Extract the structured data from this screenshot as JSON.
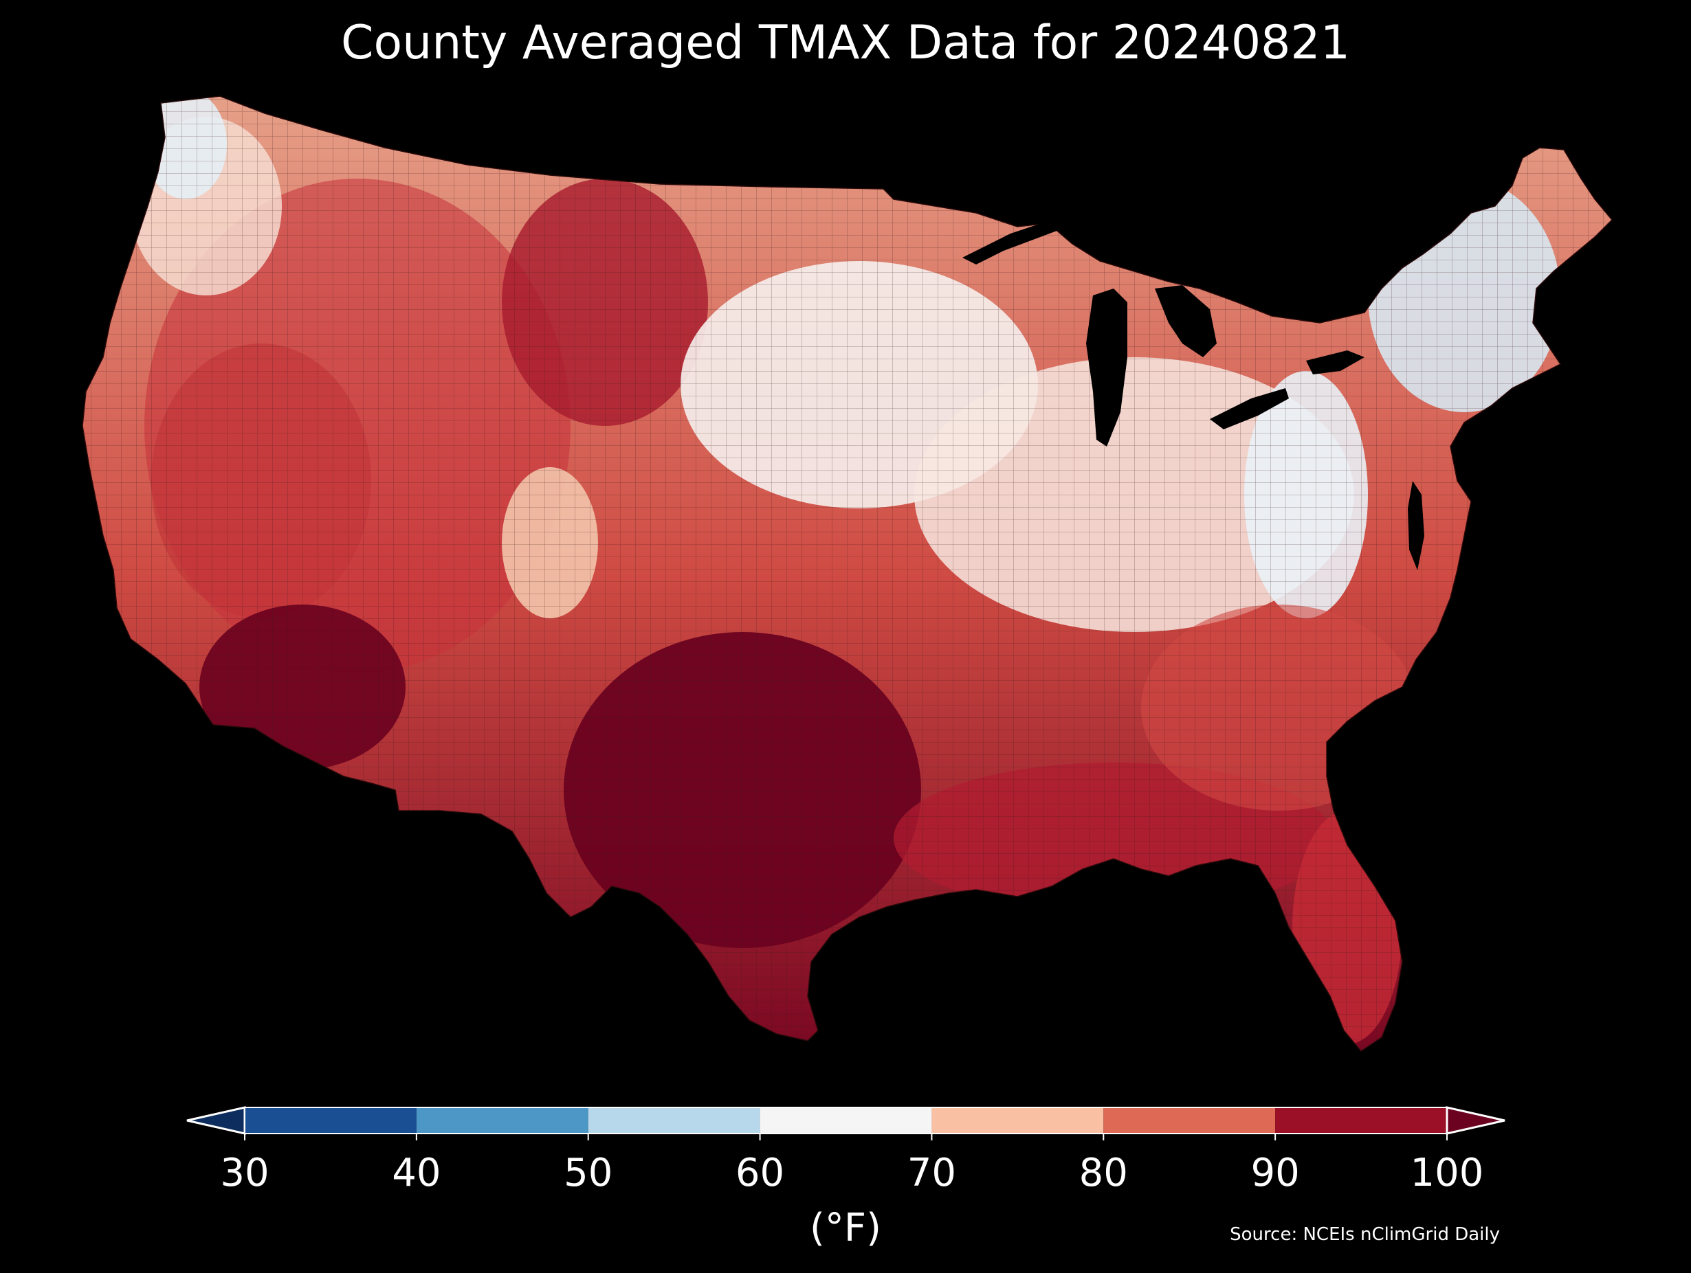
{
  "title": "County Averaged TMAX Data for 20240821",
  "source": "Source: NCEIs nClimGrid Daily",
  "colorbar": {
    "unit_label": "(°F)",
    "ticks": [
      "30",
      "40",
      "50",
      "60",
      "70",
      "80",
      "90",
      "100"
    ],
    "bins": [
      {
        "from": 30,
        "to": 40,
        "color": "#1b4f93"
      },
      {
        "from": 40,
        "to": 50,
        "color": "#4d97c7"
      },
      {
        "from": 50,
        "to": 60,
        "color": "#b7d7ea"
      },
      {
        "from": 60,
        "to": 70,
        "color": "#f5f5f5"
      },
      {
        "from": 70,
        "to": 80,
        "color": "#f9c0a4"
      },
      {
        "from": 80,
        "to": 90,
        "color": "#de6a55"
      },
      {
        "from": 90,
        "to": 100,
        "color": "#9c1027"
      }
    ],
    "under_color": "#0d2d5e",
    "over_color": "#6a0220",
    "range": [
      30,
      100
    ]
  },
  "colors": {
    "background": "#000000",
    "lakes": "#000000",
    "county_lines": "#3a1a1a"
  }
}
